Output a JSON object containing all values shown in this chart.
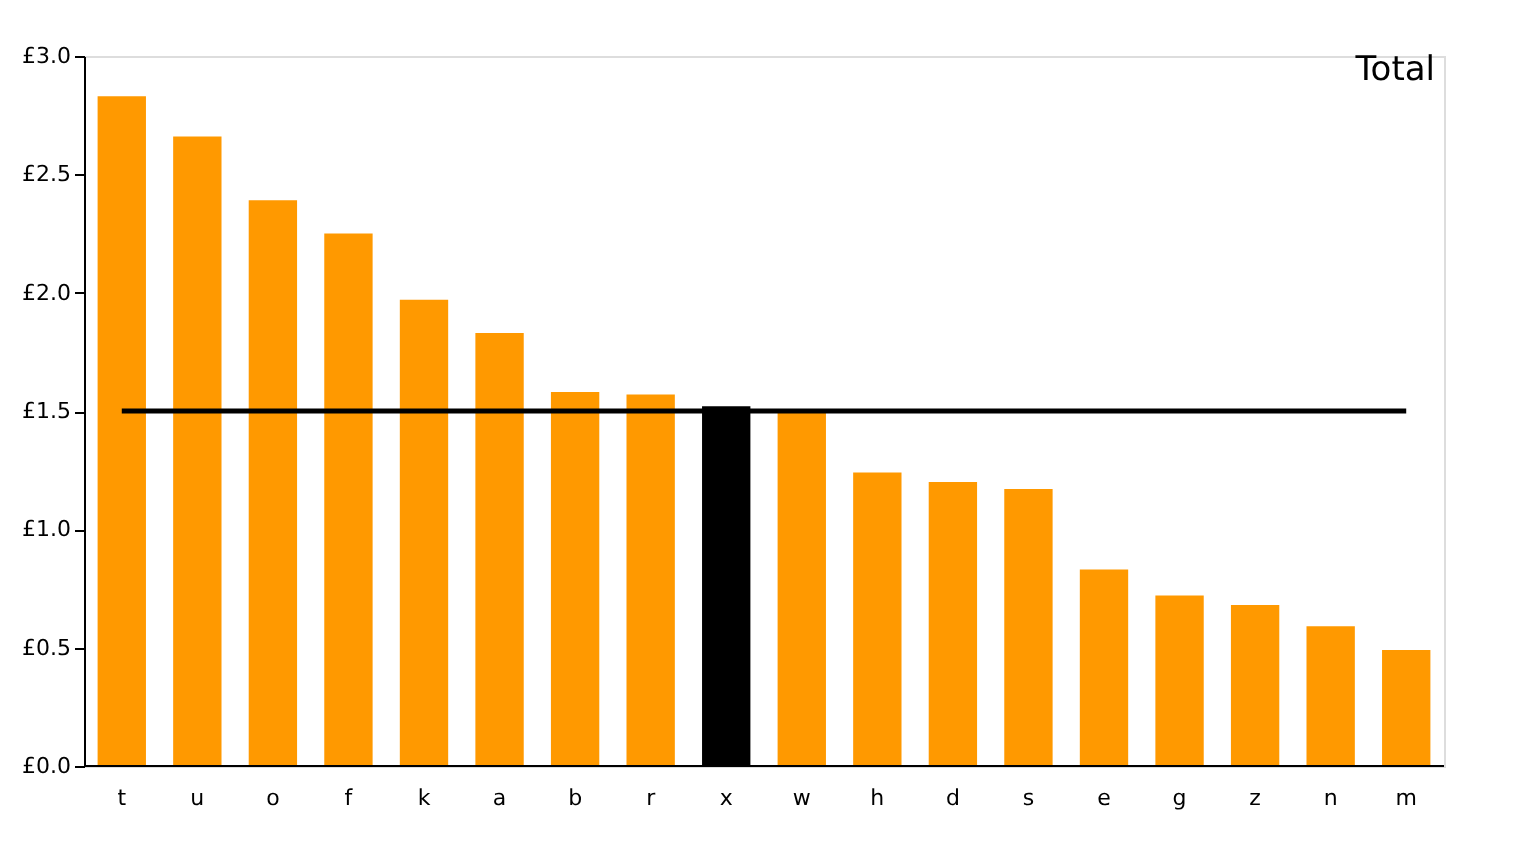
{
  "chart_data": {
    "type": "bar",
    "title": "Total",
    "categories": [
      "t",
      "u",
      "o",
      "f",
      "k",
      "a",
      "b",
      "r",
      "x",
      "w",
      "h",
      "d",
      "s",
      "e",
      "g",
      "z",
      "n",
      "m"
    ],
    "values": [
      2.83,
      2.66,
      2.39,
      2.25,
      1.97,
      1.83,
      1.58,
      1.57,
      1.52,
      1.5,
      1.24,
      1.2,
      1.17,
      0.83,
      0.72,
      0.68,
      0.59,
      0.49
    ],
    "colors": [
      "#ff9900",
      "#ff9900",
      "#ff9900",
      "#ff9900",
      "#ff9900",
      "#ff9900",
      "#ff9900",
      "#ff9900",
      "#000000",
      "#ff9900",
      "#ff9900",
      "#ff9900",
      "#ff9900",
      "#ff9900",
      "#ff9900",
      "#ff9900",
      "#ff9900",
      "#ff9900"
    ],
    "ylim": [
      0,
      3.0
    ],
    "yticks": [
      {
        "value": 0,
        "label": "£0.0"
      },
      {
        "value": 0.5,
        "label": "£0.5"
      },
      {
        "value": 1.0,
        "label": "£1.0"
      },
      {
        "value": 1.5,
        "label": "£1.5"
      },
      {
        "value": 2.0,
        "label": "£2.0"
      },
      {
        "value": 2.5,
        "label": "£2.5"
      },
      {
        "value": 3.0,
        "label": "£3.0"
      }
    ],
    "ref_lines": [
      {
        "axis": "y",
        "value": 1.5,
        "color": "#000000"
      }
    ],
    "grid": false
  }
}
